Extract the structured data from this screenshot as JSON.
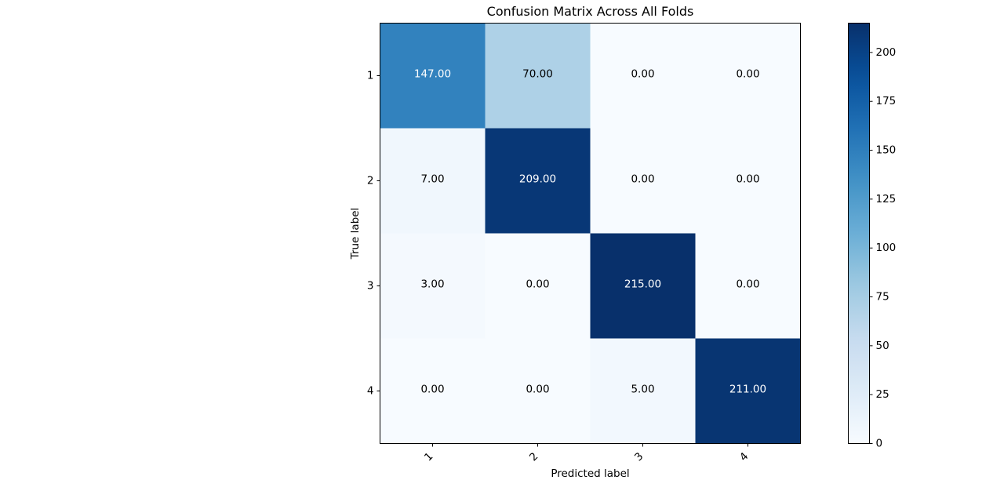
{
  "chart_data": {
    "type": "heatmap",
    "title": "Confusion Matrix Across All Folds",
    "xlabel": "Predicted label",
    "ylabel": "True label",
    "x_tick_labels": [
      "1",
      "2",
      "3",
      "4"
    ],
    "y_tick_labels": [
      "1",
      "2",
      "3",
      "4"
    ],
    "matrix": [
      [
        147,
        70,
        0,
        0
      ],
      [
        7,
        209,
        0,
        0
      ],
      [
        3,
        0,
        215,
        0
      ],
      [
        0,
        0,
        5,
        211
      ]
    ],
    "cell_labels": [
      [
        "147.00",
        "70.00",
        "0.00",
        "0.00"
      ],
      [
        "7.00",
        "209.00",
        "0.00",
        "0.00"
      ],
      [
        "3.00",
        "0.00",
        "215.00",
        "0.00"
      ],
      [
        "0.00",
        "0.00",
        "5.00",
        "211.00"
      ]
    ],
    "colormap": "Blues",
    "colorbar": {
      "min": 0,
      "max": 215,
      "ticks": [
        0,
        25,
        50,
        75,
        100,
        125,
        150,
        175,
        200
      ],
      "tick_labels": [
        "0",
        "25",
        "50",
        "75",
        "100",
        "125",
        "150",
        "175",
        "200"
      ]
    },
    "x_tick_rotation_deg": 45,
    "grid": false,
    "legend": "colorbar-right"
  }
}
